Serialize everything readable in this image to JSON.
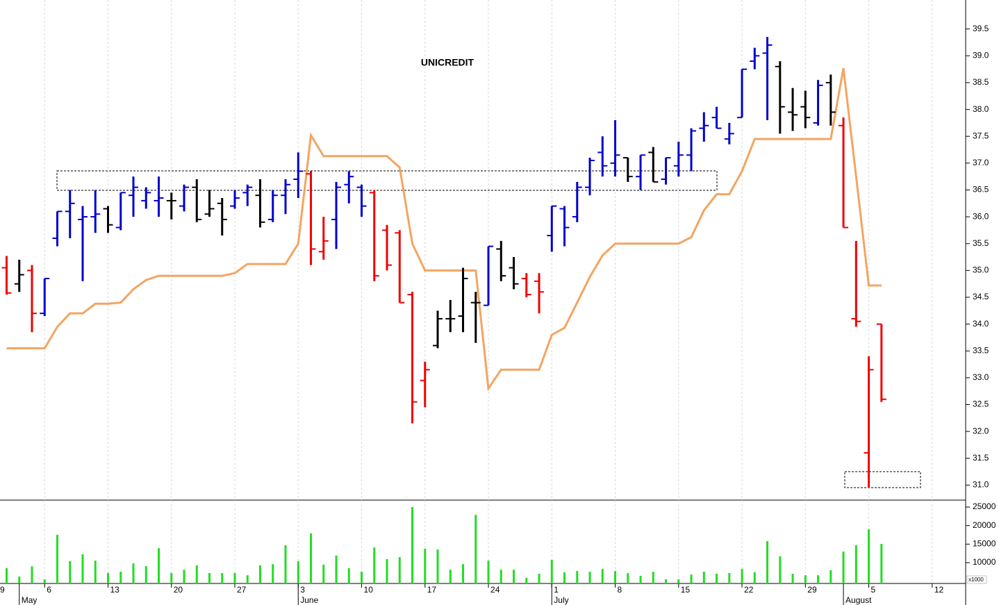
{
  "chart_data": {
    "type": "ohlc",
    "title": "UNICREDIT",
    "x": [
      2,
      3,
      4,
      5,
      6,
      7,
      8,
      9,
      10,
      11,
      12,
      13,
      14,
      15,
      16,
      17,
      18,
      19,
      20,
      21,
      22,
      23,
      24,
      25,
      26,
      27,
      28,
      29,
      30,
      31,
      32,
      33,
      34,
      35,
      36,
      37,
      38,
      39,
      40,
      41,
      42,
      43,
      44,
      45,
      46,
      47,
      48,
      49,
      50,
      51,
      52,
      53,
      54,
      55,
      56,
      57,
      58,
      59,
      60,
      61,
      62,
      63,
      64,
      65,
      66,
      67,
      68,
      69,
      70,
      71
    ],
    "open": [
      35.05,
      34.75,
      35.0,
      34.2,
      35.6,
      36.1,
      35.95,
      36.0,
      36.15,
      35.8,
      36.4,
      36.3,
      36.3,
      36.3,
      36.2,
      36.55,
      36.05,
      36.25,
      36.2,
      36.45,
      36.4,
      35.95,
      36.4,
      36.7,
      36.8,
      35.35,
      35.95,
      36.6,
      36.55,
      36.45,
      35.75,
      35.7,
      34.55,
      32.95,
      33.6,
      34.1,
      34.15,
      34.4,
      34.35,
      35.4,
      35.05,
      34.85,
      34.8,
      35.65,
      36.15,
      36.0,
      36.55,
      37.2,
      37.0,
      37.1,
      36.75,
      37.2,
      36.7,
      36.95,
      37.15,
      37.65,
      37.85,
      37.45,
      37.85,
      38.9,
      39.05,
      38.8,
      37.95,
      38.05,
      37.75,
      38.5,
      37.7,
      34.1,
      31.6,
      34.0
    ],
    "high": [
      35.27,
      35.2,
      35.1,
      34.85,
      36.1,
      36.5,
      36.2,
      36.5,
      36.2,
      36.45,
      36.75,
      36.55,
      36.75,
      36.45,
      36.6,
      36.7,
      36.5,
      36.35,
      36.5,
      36.6,
      36.7,
      36.5,
      36.7,
      37.2,
      36.85,
      36.0,
      36.65,
      36.85,
      36.6,
      36.5,
      35.85,
      35.75,
      34.6,
      33.3,
      34.25,
      34.45,
      35.05,
      34.6,
      35.45,
      35.55,
      35.25,
      34.95,
      34.95,
      36.2,
      36.2,
      36.65,
      37.1,
      37.5,
      37.8,
      37.1,
      37.15,
      37.3,
      37.1,
      37.4,
      37.65,
      37.95,
      38.05,
      37.75,
      38.75,
      39.15,
      39.35,
      38.9,
      38.4,
      38.35,
      38.55,
      38.65,
      37.85,
      35.55,
      33.4,
      34.0
    ],
    "low": [
      34.55,
      34.6,
      33.85,
      34.15,
      35.45,
      35.6,
      34.8,
      35.7,
      35.7,
      35.75,
      36.0,
      36.15,
      36.0,
      35.95,
      36.1,
      35.9,
      36.0,
      35.65,
      36.15,
      36.2,
      35.8,
      35.9,
      36.05,
      36.35,
      35.1,
      35.2,
      35.4,
      36.25,
      36.0,
      34.8,
      35.0,
      34.4,
      32.15,
      32.45,
      33.55,
      33.85,
      33.85,
      33.65,
      34.35,
      34.8,
      34.65,
      34.5,
      34.2,
      35.35,
      35.45,
      35.9,
      36.4,
      36.75,
      36.75,
      36.65,
      36.5,
      36.65,
      36.6,
      36.75,
      36.85,
      37.4,
      37.65,
      37.35,
      37.85,
      38.75,
      37.8,
      37.55,
      37.6,
      37.65,
      37.7,
      37.7,
      35.8,
      33.95,
      30.95,
      32.55
    ],
    "close": [
      34.58,
      34.92,
      34.2,
      34.85,
      36.1,
      36.25,
      36.0,
      36.05,
      35.85,
      36.45,
      36.55,
      36.45,
      36.35,
      36.3,
      36.55,
      35.95,
      36.15,
      35.95,
      36.35,
      36.55,
      35.9,
      36.4,
      36.6,
      36.85,
      35.4,
      35.55,
      36.55,
      36.75,
      36.2,
      34.9,
      35.1,
      34.4,
      32.55,
      33.15,
      34.1,
      34.1,
      34.85,
      34.4,
      35.45,
      34.9,
      34.75,
      34.55,
      34.6,
      36.2,
      35.8,
      36.55,
      37.05,
      36.95,
      37.15,
      36.75,
      37.15,
      36.65,
      37.1,
      37.15,
      37.6,
      37.7,
      37.65,
      37.55,
      38.75,
      39.0,
      39.2,
      38.05,
      37.9,
      37.85,
      38.45,
      37.95,
      35.8,
      34.05,
      33.15,
      32.6
    ],
    "bar_colors": [
      "#ee0000",
      "#000000",
      "#ee0000",
      "#0000cc",
      "#0000cc",
      "#0000cc",
      "#0000cc",
      "#0000cc",
      "#000000",
      "#0000cc",
      "#0000cc",
      "#0000cc",
      "#0000cc",
      "#000000",
      "#0000cc",
      "#000000",
      "#000000",
      "#000000",
      "#0000cc",
      "#0000cc",
      "#000000",
      "#0000cc",
      "#0000cc",
      "#0000cc",
      "#ee0000",
      "#ee0000",
      "#0000cc",
      "#0000cc",
      "#0000cc",
      "#ee0000",
      "#ee0000",
      "#ee0000",
      "#ee0000",
      "#ee0000",
      "#000000",
      "#000000",
      "#000000",
      "#000000",
      "#0000cc",
      "#000000",
      "#000000",
      "#ee0000",
      "#ee0000",
      "#0000cc",
      "#0000cc",
      "#0000cc",
      "#0000cc",
      "#0000cc",
      "#0000cc",
      "#000000",
      "#0000cc",
      "#000000",
      "#0000cc",
      "#0000cc",
      "#0000cc",
      "#0000cc",
      "#0000cc",
      "#0000cc",
      "#0000cc",
      "#0000cc",
      "#0000cc",
      "#000000",
      "#000000",
      "#000000",
      "#0000cc",
      "#000000",
      "#ee0000",
      "#ee0000",
      "#ee0000",
      "#ee0000"
    ],
    "stop_line": {
      "color": "#f4a460",
      "values": [
        33.55,
        33.55,
        33.55,
        33.55,
        33.95,
        34.2,
        34.2,
        34.38,
        34.38,
        34.4,
        34.65,
        34.82,
        34.9,
        34.9,
        34.9,
        34.9,
        34.9,
        34.9,
        34.95,
        35.12,
        35.12,
        35.12,
        35.12,
        35.5,
        37.52,
        37.13,
        37.13,
        37.13,
        37.13,
        37.13,
        37.13,
        36.92,
        35.5,
        35.0,
        35.0,
        35.0,
        35.0,
        35.0,
        32.8,
        33.15,
        33.15,
        33.15,
        33.15,
        33.8,
        33.93,
        34.4,
        34.88,
        35.28,
        35.5,
        35.5,
        35.5,
        35.5,
        35.5,
        35.5,
        35.62,
        36.12,
        36.42,
        36.42,
        36.85,
        37.45,
        37.45,
        37.45,
        37.45,
        37.45,
        37.45,
        37.45,
        38.77,
        36.75,
        34.72,
        34.72
      ]
    },
    "volume": {
      "color": "#22dd22",
      "axis": "y2",
      "values": [
        8500,
        6250,
        9000,
        5500,
        17500,
        10400,
        12250,
        10550,
        7200,
        7550,
        9800,
        9050,
        13900,
        7200,
        8100,
        9250,
        7200,
        7200,
        7200,
        6600,
        9250,
        9600,
        14700,
        10400,
        17900,
        9450,
        11900,
        8500,
        7550,
        14100,
        10950,
        11500,
        25000,
        13750,
        13550,
        8100,
        9600,
        22900,
        10550,
        8100,
        8100,
        5900,
        7000,
        10750,
        7400,
        7750,
        7550,
        8300,
        7750,
        7200,
        6450,
        7550,
        5500,
        5500,
        6800,
        7550,
        7000,
        7200,
        8300,
        7400,
        15800,
        11700,
        7000,
        6600,
        6600,
        7950,
        13000,
        14700,
        19000,
        15050
      ]
    },
    "volume_unit": "x1000",
    "xlim": [
      1.48,
      77.64
    ],
    "xticks": [
      {
        "value": 0,
        "label": "9"
      },
      {
        "value": 5,
        "label": "6"
      },
      {
        "value": 10,
        "label": "13"
      },
      {
        "value": 15,
        "label": "20"
      },
      {
        "value": 20,
        "label": "27"
      },
      {
        "value": 25,
        "label": "3"
      },
      {
        "value": 30,
        "label": "10"
      },
      {
        "value": 35,
        "label": "17"
      },
      {
        "value": 40,
        "label": "24"
      },
      {
        "value": 45,
        "label": "1"
      },
      {
        "value": 50,
        "label": "8"
      },
      {
        "value": 55,
        "label": "15"
      },
      {
        "value": 60,
        "label": "22"
      },
      {
        "value": 65,
        "label": "29"
      },
      {
        "value": 70,
        "label": "5"
      },
      {
        "value": 75,
        "label": "12"
      }
    ],
    "month_ticks": [
      {
        "value": 3,
        "label": "May"
      },
      {
        "value": 25,
        "label": "June"
      },
      {
        "value": 45,
        "label": "July"
      },
      {
        "value": 68,
        "label": "August"
      }
    ],
    "ylim": [
      30.72,
      40.04
    ],
    "yticks": [
      {
        "value": 31,
        "label": "31.0"
      },
      31.5,
      {
        "value": 32,
        "label": "32.0"
      },
      32.5,
      {
        "value": 33,
        "label": "33.0"
      },
      33.5,
      {
        "value": 34,
        "label": "34.0"
      },
      34.5,
      {
        "value": 35,
        "label": "35.0"
      },
      35.5,
      {
        "value": 36,
        "label": "36.0"
      },
      36.5,
      {
        "value": 37,
        "label": "37.0"
      },
      37.5,
      {
        "value": 38,
        "label": "38.0"
      },
      38.5,
      {
        "value": 39,
        "label": "39.0"
      },
      39.5
    ],
    "y2lim": [
      4380,
      26690
    ],
    "y2ticks": [
      10000,
      15000,
      20000,
      25000
    ],
    "grid": true
  }
}
